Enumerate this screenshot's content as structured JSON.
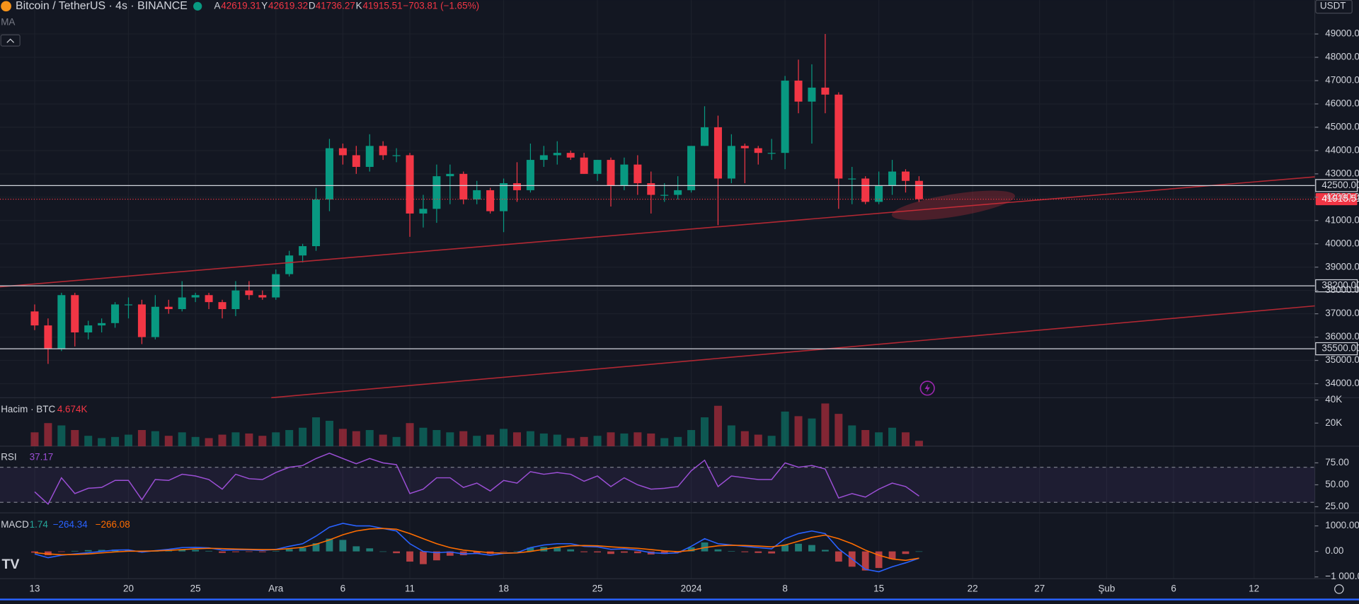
{
  "header": {
    "symbol": "Bitcoin / TetherUS · 4s · BINANCE",
    "ohlc": [
      {
        "label": "A",
        "value": 42619.31
      },
      {
        "label": "Y",
        "value": 42619.32
      },
      {
        "label": "D",
        "value": 41736.27
      },
      {
        "label": "K",
        "value": 41915.51
      }
    ],
    "change": "−703.81 (−1.65%)",
    "indicator": "MA",
    "currency": "USDT"
  },
  "chart_data": [
    {
      "type": "candlestick",
      "categories": [
        "13",
        null,
        null,
        null,
        null,
        null,
        null,
        "20",
        null,
        null,
        null,
        null,
        "25",
        null,
        null,
        null,
        null,
        null,
        "Ara",
        null,
        null,
        null,
        null,
        "6",
        null,
        null,
        null,
        null,
        "11",
        null,
        null,
        null,
        null,
        null,
        null,
        "18",
        null,
        null,
        null,
        null,
        null,
        null,
        "25",
        null,
        null,
        null,
        null,
        null,
        null,
        "2024",
        null,
        null,
        null,
        null,
        null,
        null,
        "8",
        null,
        null,
        null,
        null,
        null,
        null,
        "15",
        null,
        null,
        null,
        null,
        null,
        null,
        "22",
        null,
        null,
        null,
        null,
        "27",
        null,
        null,
        null,
        null,
        "Şub",
        null,
        null,
        null,
        null,
        "6",
        null,
        null,
        null,
        null,
        null,
        "12"
      ],
      "open": [
        37100,
        36500,
        35500,
        37800,
        36200,
        36500,
        36600,
        37400,
        37400,
        36000,
        37300,
        37200,
        37700,
        37800,
        37500,
        37200,
        38000,
        37800,
        37700,
        38700,
        39500,
        39900,
        41900,
        44100,
        43800,
        43300,
        44200,
        43800,
        43800,
        41300,
        41500,
        42900,
        43000,
        41900,
        42300,
        41400,
        42600,
        42300,
        43600,
        43800,
        43900,
        43700,
        43000,
        43600,
        42500,
        43400,
        42600,
        42100,
        42100,
        42300,
        44200,
        45000,
        42800,
        44200,
        44100,
        43900,
        43900,
        47000,
        46100,
        46700,
        46400,
        42800,
        42800,
        41800,
        42500,
        43100,
        42700,
        null,
        null,
        null,
        null,
        null,
        null,
        null,
        null,
        null,
        null,
        null,
        null,
        null,
        null,
        null,
        null,
        null,
        null,
        null,
        null,
        null,
        null,
        null,
        null,
        null
      ],
      "high": [
        37400,
        36800,
        37900,
        37900,
        36700,
        36800,
        37500,
        37700,
        37600,
        37800,
        37600,
        38400,
        37900,
        37900,
        37600,
        38400,
        38400,
        38000,
        38900,
        39700,
        40000,
        42400,
        44500,
        44300,
        44200,
        44700,
        44400,
        44100,
        43900,
        42100,
        43400,
        43400,
        43100,
        42700,
        42400,
        42800,
        43500,
        44300,
        44200,
        44400,
        44000,
        43900,
        43600,
        43700,
        43700,
        43800,
        43100,
        42600,
        42900,
        44200,
        45900,
        45500,
        44700,
        44300,
        44200,
        44500,
        47200,
        47900,
        47700,
        49000,
        46500,
        43300,
        42900,
        43100,
        43600,
        43200,
        42900,
        null,
        null,
        null,
        null,
        null,
        null,
        null,
        null,
        null,
        null,
        null,
        null,
        null,
        null,
        null,
        null,
        null,
        null,
        null,
        null,
        null,
        null,
        null,
        null,
        null
      ],
      "low": [
        36300,
        34850,
        35400,
        35600,
        35900,
        36200,
        36400,
        36800,
        35700,
        35900,
        37000,
        37100,
        37500,
        37200,
        36800,
        36900,
        37600,
        37600,
        37600,
        38600,
        39200,
        39700,
        41400,
        43400,
        43000,
        43100,
        43600,
        43500,
        40300,
        40700,
        40900,
        41700,
        41700,
        41700,
        41300,
        40500,
        41800,
        42200,
        43300,
        43400,
        43600,
        43000,
        42700,
        41600,
        42300,
        42100,
        41300,
        41800,
        41900,
        42200,
        44200,
        40800,
        42600,
        42600,
        43400,
        43600,
        43200,
        45600,
        44300,
        45600,
        41500,
        41700,
        41700,
        41700,
        42100,
        42200,
        41800,
        null,
        null,
        null,
        null,
        null,
        null,
        null,
        null,
        null,
        null,
        null,
        null,
        null,
        null,
        null,
        null,
        null,
        null,
        null,
        null,
        null,
        null,
        null,
        null,
        null
      ],
      "close": [
        36500,
        35500,
        37800,
        36200,
        36500,
        36600,
        37400,
        37400,
        36000,
        37300,
        37200,
        37700,
        37800,
        37500,
        37200,
        38000,
        37800,
        37700,
        38700,
        39500,
        39900,
        41900,
        44100,
        43800,
        43300,
        44200,
        43800,
        43800,
        41300,
        41500,
        42900,
        43000,
        41900,
        42300,
        41400,
        42600,
        42300,
        43600,
        43800,
        43900,
        43700,
        43000,
        43600,
        42500,
        43400,
        42600,
        42100,
        42100,
        42300,
        44200,
        45000,
        42800,
        44200,
        44100,
        43900,
        43900,
        47000,
        46100,
        46700,
        46400,
        42800,
        42800,
        41800,
        42500,
        43100,
        42700,
        41915.51,
        null,
        null,
        null,
        null,
        null,
        null,
        null,
        null,
        null,
        null,
        null,
        null,
        null,
        null,
        null,
        null,
        null,
        null,
        null,
        null,
        null,
        null,
        null,
        null,
        null
      ],
      "up_color": "#089981",
      "down_color": "#f23645",
      "ylim": [
        33400,
        50450
      ],
      "yticks": [
        {
          "value": 34000,
          "label": "34000.00"
        },
        {
          "value": 35000,
          "label": "35000.00"
        },
        {
          "value": 36000,
          "label": "36000.00"
        },
        {
          "value": 37000,
          "label": "37000.00"
        },
        {
          "value": 38000,
          "label": "38000.00"
        },
        {
          "value": 39000,
          "label": "39000.00"
        },
        {
          "value": 40000,
          "label": "40000.00"
        },
        {
          "value": 41000,
          "label": "41000.00"
        },
        {
          "value": 42000,
          "label": "42000.00"
        },
        {
          "value": 43000,
          "label": "43000.00"
        },
        {
          "value": 44000,
          "label": "44000.00"
        },
        {
          "value": 45000,
          "label": "45000.00"
        },
        {
          "value": 46000,
          "label": "46000.00"
        },
        {
          "value": 47000,
          "label": "47000.00"
        },
        {
          "value": 48000,
          "label": "48000.00"
        },
        {
          "value": 49000,
          "label": "49000.00"
        }
      ],
      "price_lines": [
        {
          "value": 42500,
          "label": "42500.00"
        },
        {
          "value": 38200,
          "label": "38200.00"
        },
        {
          "value": 35500,
          "label": "35500.00"
        }
      ],
      "last_price": 41915.51,
      "grid": true
    },
    {
      "type": "bar",
      "name": "Hacim · BTC",
      "current": {
        "value": 4674,
        "label": "4.674K"
      },
      "values": [
        12000,
        20000,
        18000,
        14000,
        9000,
        7000,
        8000,
        10000,
        14000,
        13000,
        9000,
        12000,
        8000,
        7000,
        10000,
        12000,
        11000,
        9000,
        12000,
        14000,
        16000,
        25000,
        22000,
        15000,
        13000,
        14000,
        10000,
        8000,
        20000,
        16000,
        14000,
        12000,
        13000,
        9000,
        10000,
        15000,
        12000,
        13000,
        11000,
        10000,
        7000,
        8000,
        9000,
        12000,
        11000,
        12000,
        11000,
        7000,
        8000,
        14000,
        25000,
        35000,
        18000,
        13000,
        10000,
        9000,
        30000,
        26000,
        24000,
        37000,
        28000,
        18000,
        14000,
        12000,
        16000,
        12000,
        4674,
        null,
        null,
        null,
        null,
        null,
        null,
        null,
        null,
        null,
        null,
        null,
        null,
        null,
        null,
        null,
        null,
        null,
        null,
        null,
        null,
        null,
        null,
        null,
        null,
        null
      ],
      "ylim": [
        0,
        42000
      ],
      "yticks": [
        {
          "value": 20000,
          "label": "20K"
        },
        {
          "value": 40000,
          "label": "40K"
        }
      ]
    },
    {
      "type": "line",
      "name": "RSI",
      "current": 37.17,
      "color": "#9c4fd6",
      "values": [
        42,
        28,
        58,
        40,
        46,
        47,
        55,
        55,
        33,
        56,
        55,
        62,
        60,
        56,
        45,
        62,
        57,
        56,
        64,
        70,
        72,
        80,
        86,
        80,
        74,
        80,
        75,
        73,
        40,
        45,
        58,
        58,
        47,
        52,
        43,
        55,
        52,
        65,
        62,
        64,
        62,
        54,
        60,
        48,
        58,
        50,
        45,
        46,
        48,
        66,
        78,
        48,
        60,
        58,
        56,
        56,
        75,
        70,
        72,
        68,
        35,
        40,
        36,
        45,
        52,
        48,
        37.17,
        null,
        null,
        null,
        null,
        null,
        null,
        null,
        null,
        null,
        null,
        null,
        null,
        null,
        null,
        null,
        null,
        null,
        null,
        null,
        null,
        null,
        null,
        null,
        null,
        null
      ],
      "ylim": [
        18,
        94
      ],
      "yticks": [
        {
          "value": 25,
          "label": "25.00"
        },
        {
          "value": 50,
          "label": "50.00"
        },
        {
          "value": 75,
          "label": "75.00"
        }
      ],
      "bands": [
        30,
        70
      ]
    },
    {
      "type": "macd",
      "name": "MACD",
      "current": [
        1.74,
        {
          "value": -264.34,
          "label": "−264.34"
        },
        {
          "value": -266.08,
          "label": "−266.08"
        }
      ],
      "histogram": [
        -50,
        -150,
        -20,
        20,
        50,
        60,
        70,
        50,
        -40,
        10,
        40,
        80,
        60,
        20,
        -60,
        -30,
        -20,
        -30,
        10,
        90,
        140,
        320,
        500,
        450,
        200,
        120,
        0,
        -70,
        -400,
        -500,
        -350,
        -170,
        -150,
        -80,
        -100,
        -10,
        10,
        150,
        170,
        140,
        80,
        -30,
        -40,
        -100,
        -50,
        -70,
        -120,
        -100,
        -50,
        160,
        350,
        80,
        10,
        -30,
        -60,
        -80,
        250,
        300,
        250,
        60,
        -400,
        -600,
        -750,
        -650,
        -300,
        -100,
        1.74,
        null,
        null,
        null,
        null,
        null,
        null,
        null,
        null,
        null,
        null,
        null,
        null,
        null,
        null,
        null,
        null,
        null,
        null,
        null,
        null,
        null,
        null,
        null,
        null,
        null
      ],
      "macd": [
        -100,
        -250,
        -150,
        -100,
        -50,
        0,
        50,
        60,
        -30,
        30,
        80,
        150,
        160,
        140,
        50,
        60,
        60,
        40,
        80,
        200,
        300,
        600,
        950,
        1100,
        1000,
        1000,
        900,
        800,
        300,
        0,
        -50,
        -20,
        -100,
        -80,
        -150,
        -80,
        -50,
        150,
        250,
        300,
        300,
        200,
        180,
        80,
        100,
        50,
        -50,
        -80,
        -60,
        200,
        500,
        300,
        250,
        200,
        150,
        100,
        500,
        700,
        800,
        700,
        100,
        -300,
        -700,
        -800,
        -600,
        -450,
        -264.34,
        null,
        null,
        null,
        null,
        null,
        null,
        null,
        null,
        null,
        null,
        null,
        null,
        null,
        null,
        null,
        null,
        null,
        null,
        null,
        null,
        null,
        null,
        null,
        null,
        null
      ],
      "signal": [
        -50,
        -100,
        -130,
        -120,
        -100,
        -60,
        -20,
        10,
        10,
        20,
        40,
        70,
        100,
        120,
        110,
        90,
        80,
        70,
        70,
        110,
        160,
        280,
        450,
        650,
        800,
        880,
        900,
        870,
        700,
        500,
        300,
        150,
        50,
        0,
        -50,
        -70,
        -60,
        0,
        80,
        160,
        220,
        230,
        220,
        180,
        150,
        120,
        70,
        20,
        -10,
        40,
        150,
        220,
        240,
        230,
        210,
        180,
        250,
        400,
        550,
        640,
        500,
        300,
        50,
        -150,
        -300,
        -350,
        -266.08,
        null,
        null,
        null,
        null,
        null,
        null,
        null,
        null,
        null,
        null,
        null,
        null,
        null,
        null,
        null,
        null,
        null,
        null,
        null,
        null,
        null,
        null,
        null,
        null,
        null
      ],
      "macd_color": "#2962ff",
      "signal_color": "#ff6d00",
      "hist_up_color": "#26a69a",
      "hist_down_color": "#ff5252",
      "ylim": [
        -1070,
        1510
      ],
      "yticks": [
        {
          "value": -1000,
          "label": "−1 000.00"
        },
        {
          "value": 0,
          "label": "0.00"
        },
        {
          "value": 1000,
          "label": "1000.00"
        }
      ]
    }
  ]
}
